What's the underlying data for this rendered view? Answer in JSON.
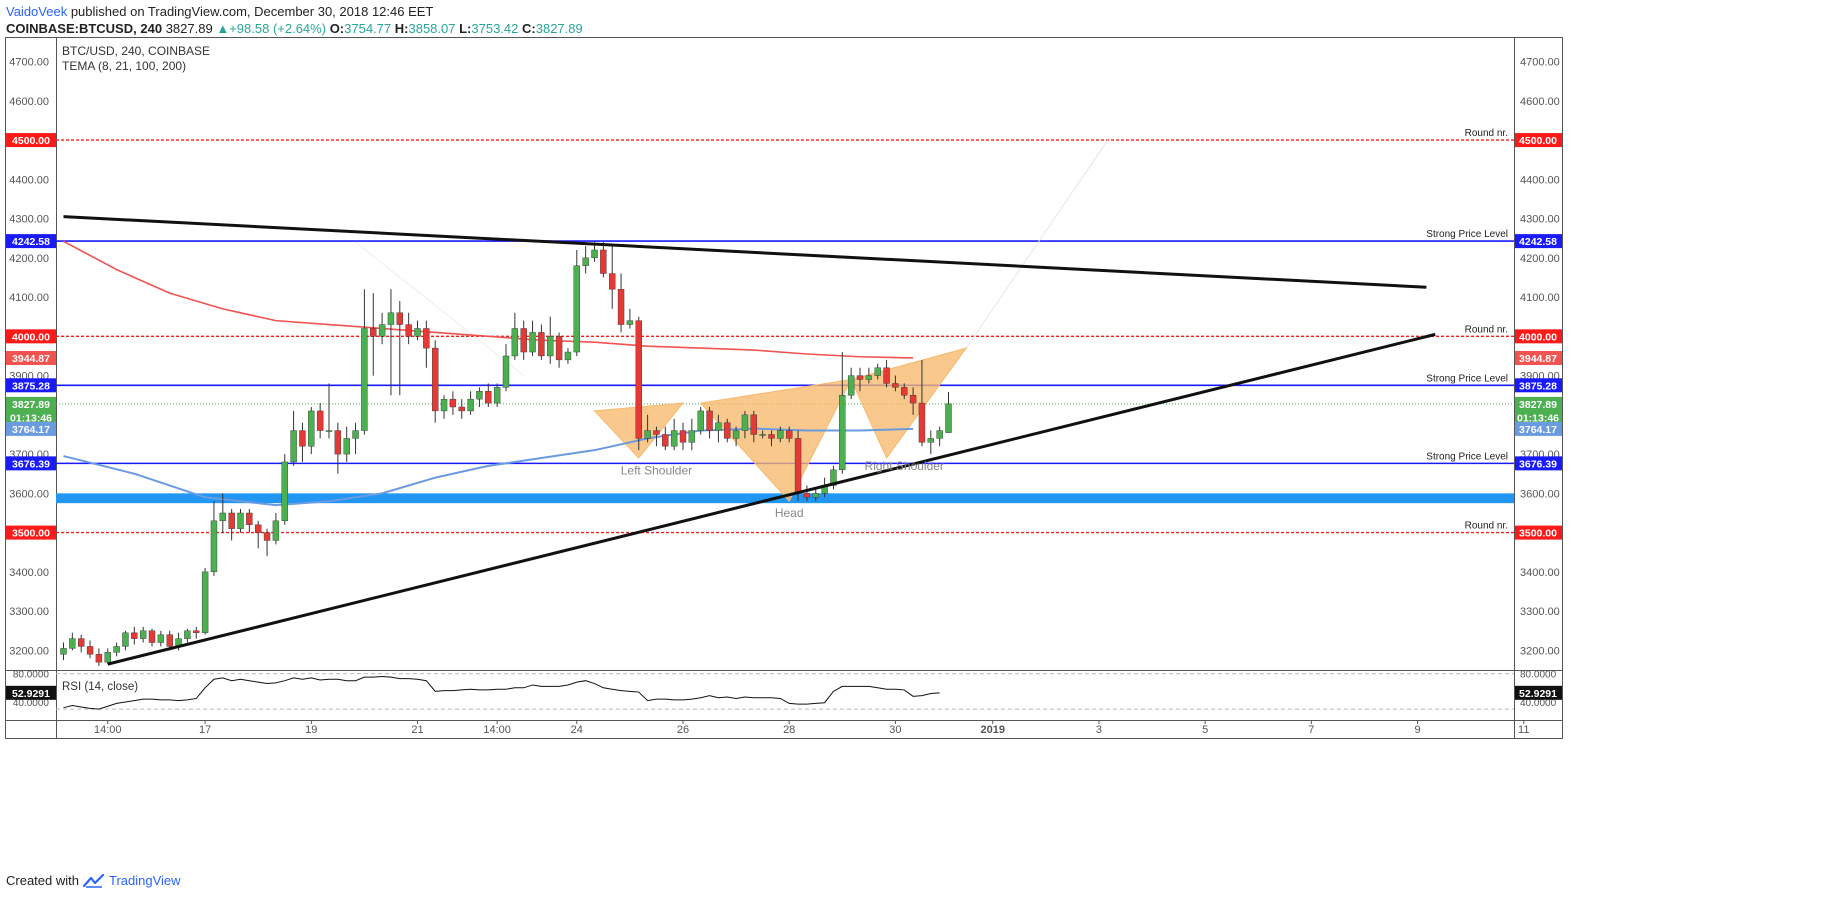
{
  "header": {
    "author": "VaidoVeek",
    "published": "published on TradingView.com, December 30, 2018 12:46 EET",
    "symbol": "COINBASE:BTCUSD",
    "interval": "240",
    "last": "3827.89",
    "change": "+98.58 (+2.64%)",
    "o_label": "O:",
    "o": "3754.77",
    "h_label": "H:",
    "h": "3858.07",
    "l_label": "L:",
    "l": "3753.42",
    "c_label": "C:",
    "c": "3827.89"
  },
  "legend": {
    "title": "BTC/USD, 240, COINBASE",
    "indicator": "TEMA (8, 21, 100, 200)"
  },
  "footer": {
    "created_with": "Created with",
    "brand": "TradingView"
  },
  "colors": {
    "bull": "#4caf50",
    "bear": "#e53935",
    "price_level": "#1a1aff",
    "round_level": "#ff1a1a",
    "ema200": "#f05350",
    "ema100": "#6a9be0",
    "pattern": "#f7b96b",
    "trend": "#111111",
    "zone": "#2196f3",
    "up_text": "#26a69a"
  },
  "chart_data": {
    "type": "candlestick",
    "symbol": "BTC/USD",
    "timeframe": "240",
    "ylim": [
      3150,
      4760
    ],
    "y_ticks": [
      3200,
      3300,
      3400,
      3500,
      3600,
      3700,
      3800,
      3900,
      4000,
      4100,
      4200,
      4300,
      4400,
      4500,
      4600,
      4700
    ],
    "x_ticks": [
      {
        "label": "14:00",
        "bar": 5
      },
      {
        "label": "17",
        "bar": 16
      },
      {
        "label": "19",
        "bar": 28
      },
      {
        "label": "21",
        "bar": 40
      },
      {
        "label": "14:00",
        "bar": 49
      },
      {
        "label": "24",
        "bar": 58
      },
      {
        "label": "26",
        "bar": 70
      },
      {
        "label": "28",
        "bar": 82
      },
      {
        "label": "30",
        "bar": 94
      },
      {
        "label": "2019",
        "bar": 105
      },
      {
        "label": "3",
        "bar": 117
      },
      {
        "label": "5",
        "bar": 129
      },
      {
        "label": "7",
        "bar": 141
      },
      {
        "label": "9",
        "bar": 153
      },
      {
        "label": "11",
        "bar": 165
      }
    ],
    "candles": [
      [
        3190,
        3205,
        3175,
        3220
      ],
      [
        3205,
        3230,
        3200,
        3245
      ],
      [
        3230,
        3210,
        3195,
        3240
      ],
      [
        3210,
        3190,
        3180,
        3225
      ],
      [
        3190,
        3170,
        3160,
        3205
      ],
      [
        3170,
        3195,
        3165,
        3205
      ],
      [
        3195,
        3210,
        3185,
        3220
      ],
      [
        3210,
        3245,
        3200,
        3250
      ],
      [
        3245,
        3230,
        3215,
        3260
      ],
      [
        3230,
        3250,
        3220,
        3260
      ],
      [
        3250,
        3220,
        3210,
        3255
      ],
      [
        3220,
        3240,
        3210,
        3250
      ],
      [
        3240,
        3210,
        3200,
        3250
      ],
      [
        3210,
        3230,
        3200,
        3245
      ],
      [
        3230,
        3250,
        3220,
        3255
      ],
      [
        3250,
        3245,
        3230,
        3260
      ],
      [
        3245,
        3400,
        3240,
        3410
      ],
      [
        3400,
        3530,
        3390,
        3580
      ],
      [
        3530,
        3550,
        3500,
        3600
      ],
      [
        3550,
        3510,
        3480,
        3560
      ],
      [
        3510,
        3550,
        3500,
        3560
      ],
      [
        3550,
        3520,
        3500,
        3560
      ],
      [
        3520,
        3500,
        3460,
        3530
      ],
      [
        3500,
        3480,
        3440,
        3510
      ],
      [
        3480,
        3530,
        3470,
        3550
      ],
      [
        3530,
        3680,
        3520,
        3700
      ],
      [
        3680,
        3760,
        3670,
        3810
      ],
      [
        3760,
        3720,
        3680,
        3780
      ],
      [
        3720,
        3810,
        3700,
        3820
      ],
      [
        3810,
        3760,
        3740,
        3830
      ],
      [
        3760,
        3760,
        3740,
        3880
      ],
      [
        3760,
        3700,
        3650,
        3780
      ],
      [
        3700,
        3740,
        3680,
        3770
      ],
      [
        3740,
        3760,
        3700,
        3780
      ],
      [
        3760,
        4020,
        3750,
        4120
      ],
      [
        4020,
        4000,
        3900,
        4110
      ],
      [
        4000,
        4030,
        3980,
        4060
      ],
      [
        4030,
        4060,
        3850,
        4120
      ],
      [
        4060,
        4030,
        3850,
        4090
      ],
      [
        4030,
        4000,
        3980,
        4060
      ],
      [
        4000,
        4020,
        3990,
        4040
      ],
      [
        4020,
        3970,
        3920,
        4040
      ],
      [
        3970,
        3810,
        3780,
        3990
      ],
      [
        3810,
        3840,
        3790,
        3850
      ],
      [
        3840,
        3820,
        3800,
        3860
      ],
      [
        3820,
        3810,
        3790,
        3840
      ],
      [
        3810,
        3840,
        3800,
        3860
      ],
      [
        3840,
        3860,
        3820,
        3870
      ],
      [
        3860,
        3830,
        3820,
        3880
      ],
      [
        3830,
        3870,
        3820,
        3880
      ],
      [
        3870,
        3950,
        3860,
        3980
      ],
      [
        3950,
        4020,
        3940,
        4060
      ],
      [
        4020,
        3960,
        3940,
        4040
      ],
      [
        3960,
        4010,
        3950,
        4040
      ],
      [
        4010,
        3950,
        3940,
        4030
      ],
      [
        3950,
        4000,
        3930,
        4050
      ],
      [
        4000,
        3940,
        3920,
        4010
      ],
      [
        3940,
        3960,
        3930,
        3970
      ],
      [
        3960,
        4180,
        3950,
        4220
      ],
      [
        4180,
        4200,
        4160,
        4230
      ],
      [
        4200,
        4220,
        4190,
        4240
      ],
      [
        4220,
        4160,
        4150,
        4240
      ],
      [
        4160,
        4120,
        4070,
        4230
      ],
      [
        4120,
        4030,
        4010,
        4160
      ],
      [
        4030,
        4040,
        4020,
        4070
      ],
      [
        4040,
        3740,
        3710,
        4050
      ],
      [
        3740,
        3760,
        3730,
        3800
      ],
      [
        3760,
        3750,
        3720,
        3770
      ],
      [
        3750,
        3720,
        3710,
        3770
      ],
      [
        3720,
        3760,
        3710,
        3790
      ],
      [
        3760,
        3730,
        3710,
        3780
      ],
      [
        3730,
        3760,
        3710,
        3790
      ],
      [
        3760,
        3810,
        3750,
        3820
      ],
      [
        3810,
        3760,
        3740,
        3820
      ],
      [
        3760,
        3780,
        3730,
        3800
      ],
      [
        3780,
        3740,
        3730,
        3790
      ],
      [
        3740,
        3760,
        3720,
        3770
      ],
      [
        3760,
        3800,
        3740,
        3810
      ],
      [
        3800,
        3750,
        3730,
        3810
      ],
      [
        3750,
        3750,
        3740,
        3760
      ],
      [
        3750,
        3740,
        3720,
        3760
      ],
      [
        3740,
        3760,
        3730,
        3770
      ],
      [
        3760,
        3740,
        3730,
        3770
      ],
      [
        3740,
        3600,
        3580,
        3760
      ],
      [
        3600,
        3590,
        3580,
        3620
      ],
      [
        3590,
        3600,
        3580,
        3610
      ],
      [
        3600,
        3620,
        3590,
        3640
      ],
      [
        3620,
        3660,
        3610,
        3670
      ],
      [
        3660,
        3850,
        3650,
        3960
      ],
      [
        3850,
        3900,
        3840,
        3920
      ],
      [
        3900,
        3890,
        3860,
        3920
      ],
      [
        3890,
        3900,
        3880,
        3920
      ],
      [
        3900,
        3920,
        3890,
        3930
      ],
      [
        3920,
        3880,
        3870,
        3940
      ],
      [
        3880,
        3870,
        3860,
        3900
      ],
      [
        3870,
        3850,
        3840,
        3880
      ],
      [
        3850,
        3830,
        3800,
        3870
      ],
      [
        3830,
        3730,
        3720,
        3940
      ],
      [
        3730,
        3740,
        3700,
        3760
      ],
      [
        3740,
        3760,
        3720,
        3770
      ],
      [
        3754.77,
        3827.89,
        3753.42,
        3858.07
      ]
    ],
    "ema100": [
      [
        0,
        3695
      ],
      [
        8,
        3650
      ],
      [
        16,
        3590
      ],
      [
        24,
        3570
      ],
      [
        30,
        3580
      ],
      [
        36,
        3600
      ],
      [
        42,
        3640
      ],
      [
        48,
        3670
      ],
      [
        54,
        3690
      ],
      [
        60,
        3710
      ],
      [
        66,
        3740
      ],
      [
        72,
        3760
      ],
      [
        78,
        3765
      ],
      [
        84,
        3760
      ],
      [
        90,
        3760
      ],
      [
        96,
        3764.17
      ]
    ],
    "ema200": [
      [
        0,
        4242
      ],
      [
        6,
        4170
      ],
      [
        12,
        4110
      ],
      [
        18,
        4070
      ],
      [
        24,
        4040
      ],
      [
        30,
        4030
      ],
      [
        36,
        4020
      ],
      [
        42,
        4010
      ],
      [
        48,
        4000
      ],
      [
        54,
        3990
      ],
      [
        60,
        3985
      ],
      [
        66,
        3975
      ],
      [
        72,
        3970
      ],
      [
        78,
        3965
      ],
      [
        84,
        3955
      ],
      [
        90,
        3948
      ],
      [
        96,
        3944.87
      ]
    ],
    "horizontal_levels": [
      {
        "value": 4500,
        "style": "dashed",
        "color": "#ff1a1a",
        "label": "Round nr.",
        "tag": "4500.00"
      },
      {
        "value": 4242.58,
        "style": "solid",
        "color": "#1a1aff",
        "label": "Strong Price Level",
        "tag": "4242.58"
      },
      {
        "value": 4000,
        "style": "dashed",
        "color": "#ff1a1a",
        "label": "Round nr.",
        "tag": "4000.00"
      },
      {
        "value": 3875.28,
        "style": "solid",
        "color": "#1a1aff",
        "label": "Strong Price Level",
        "tag": "3875.28"
      },
      {
        "value": 3676.39,
        "style": "solid",
        "color": "#1a1aff",
        "label": "Strong Price Level",
        "tag": "3676.39"
      },
      {
        "value": 3500,
        "style": "dashed",
        "color": "#ff1a1a",
        "label": "Round nr.",
        "tag": "3500.00"
      }
    ],
    "price_tags": [
      {
        "value": 3944.87,
        "tag": "3944.87",
        "color": "#f05350"
      },
      {
        "value": 3827.89,
        "tag": "3827.89",
        "color": "#4caf50"
      },
      {
        "value": 3793,
        "tag": "01:13:46",
        "color": "#4caf50"
      },
      {
        "value": 3764.17,
        "tag": "3764.17",
        "color": "#6a9be0"
      }
    ],
    "zone": [
      3575,
      3600
    ],
    "trendlines": [
      {
        "from": [
          0,
          4305
        ],
        "to": [
          154,
          4125
        ]
      },
      {
        "from": [
          5,
          3165
        ],
        "to": [
          155,
          4005
        ]
      }
    ],
    "pattern_triangles": [
      [
        [
          60,
          3810
        ],
        [
          70,
          3830
        ],
        [
          65,
          3690
        ]
      ],
      [
        [
          72,
          3830
        ],
        [
          89,
          3890
        ],
        [
          82,
          3580
        ]
      ],
      [
        [
          89,
          3890
        ],
        [
          102,
          3970
        ],
        [
          93,
          3690
        ]
      ]
    ],
    "pattern_labels": [
      {
        "text": "Left Shoulder",
        "bar": 67,
        "value": 3648
      },
      {
        "text": "Head",
        "bar": 82,
        "value": 3540
      },
      {
        "text": "Right Shoulder",
        "bar": 95,
        "value": 3660
      }
    ],
    "projection_line": {
      "from": [
        102,
        3970
      ],
      "to": [
        118,
        4500
      ]
    },
    "rsi": {
      "label": "RSI (14, close)",
      "current": "52.9291",
      "upper": 80,
      "lower": 30,
      "axis_ticks": [
        {
          "value": 80,
          "label": "80.0000"
        },
        {
          "value": 40,
          "label": "40.0000"
        }
      ],
      "values": [
        32,
        35,
        33,
        31,
        30,
        34,
        38,
        40,
        42,
        44,
        44,
        43,
        43,
        42,
        43,
        45,
        60,
        72,
        74,
        70,
        72,
        70,
        68,
        66,
        67,
        70,
        74,
        72,
        74,
        71,
        72,
        72,
        70,
        70,
        75,
        75,
        76,
        75,
        73,
        73,
        72,
        70,
        55,
        56,
        56,
        57,
        58,
        57,
        57,
        58,
        58,
        60,
        60,
        64,
        62,
        62,
        62,
        64,
        68,
        70,
        66,
        60,
        58,
        56,
        55,
        54,
        42,
        44,
        44,
        43,
        43,
        44,
        46,
        49,
        46,
        47,
        45,
        47,
        46,
        46,
        46,
        45,
        38,
        37,
        37,
        38,
        39,
        55,
        62,
        62,
        62,
        62,
        60,
        58,
        58,
        57,
        48,
        49,
        52,
        52.93
      ]
    }
  }
}
